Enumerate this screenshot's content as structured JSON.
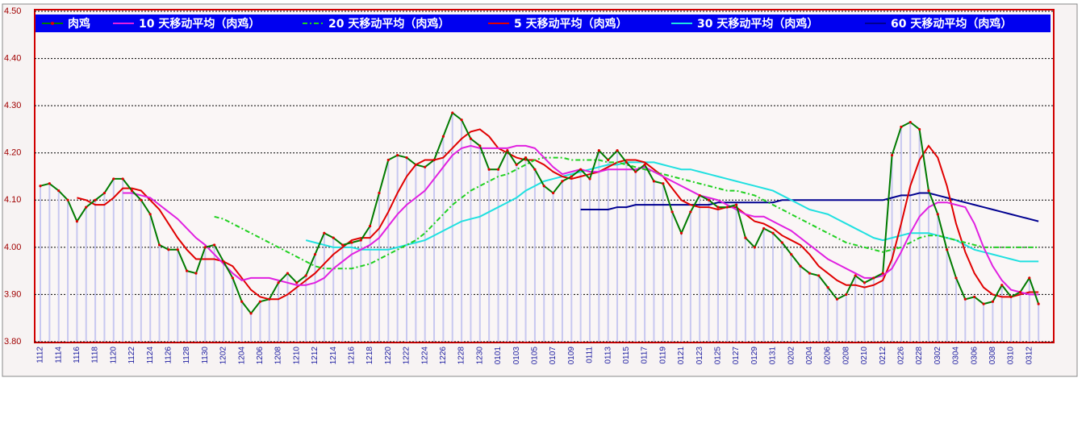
{
  "chart_data": {
    "type": "line",
    "categories": [
      "1112",
      null,
      "1114",
      null,
      "1116",
      null,
      "1118",
      null,
      "1120",
      null,
      "1122",
      null,
      "1124",
      null,
      "1126",
      null,
      "1128",
      null,
      "1130",
      null,
      "1202",
      null,
      "1204",
      null,
      "1206",
      null,
      "1208",
      null,
      "1210",
      null,
      "1212",
      null,
      "1214",
      null,
      "1216",
      null,
      "1218",
      null,
      "1220",
      null,
      "1222",
      null,
      "1224",
      null,
      "1226",
      null,
      "1228",
      null,
      "1230",
      null,
      "0101",
      null,
      "0103",
      null,
      "0105",
      null,
      "0107",
      null,
      "0109",
      null,
      "0111",
      null,
      "0113",
      null,
      "0115",
      null,
      "0117",
      null,
      "0119",
      null,
      "0121",
      null,
      "0123",
      null,
      "0125",
      null,
      "0127",
      null,
      "0129",
      null,
      "0131",
      null,
      "0202",
      null,
      "0204",
      null,
      "0206",
      null,
      "0208",
      null,
      "0210",
      null,
      "0212",
      null,
      "0226",
      null,
      "0228",
      null,
      "0302",
      null,
      "0304",
      null,
      "0306",
      null,
      "0308",
      null,
      "0310",
      null,
      "0312",
      null
    ],
    "series": [
      {
        "name": "肉鸡",
        "color": "#007a00",
        "marker_color": "#e00000",
        "bar_color": "#c8c8f0",
        "values": [
          4.13,
          4.135,
          4.12,
          4.1,
          4.055,
          4.085,
          4.1,
          4.115,
          4.145,
          4.145,
          4.12,
          4.1,
          4.07,
          4.005,
          3.995,
          3.995,
          3.95,
          3.945,
          4.0,
          4.005,
          3.97,
          3.935,
          3.885,
          3.86,
          3.885,
          3.89,
          3.925,
          3.945,
          3.925,
          3.94,
          3.985,
          4.03,
          4.02,
          4.005,
          4.01,
          4.015,
          4.045,
          4.115,
          4.185,
          4.195,
          4.19,
          4.175,
          4.17,
          4.185,
          4.235,
          4.285,
          4.27,
          4.23,
          4.215,
          4.165,
          4.165,
          4.205,
          4.175,
          4.19,
          4.165,
          4.13,
          4.115,
          4.14,
          4.15,
          4.165,
          4.145,
          4.205,
          4.185,
          4.205,
          4.18,
          4.16,
          4.175,
          4.14,
          4.135,
          4.075,
          4.03,
          4.075,
          4.11,
          4.1,
          4.085,
          4.085,
          4.09,
          4.02,
          4.0,
          4.04,
          4.03,
          4.01,
          3.985,
          3.96,
          3.945,
          3.94,
          3.915,
          3.89,
          3.9,
          3.94,
          3.925,
          3.935,
          3.945,
          4.195,
          4.255,
          4.265,
          4.25,
          4.12,
          4.07,
          3.995,
          3.935,
          3.89,
          3.895,
          3.88,
          3.885,
          3.92,
          3.895,
          3.905,
          3.935,
          3.88
        ]
      },
      {
        "name": "10 天移动平均（肉鸡）",
        "color": "#e020e0",
        "values": [
          null,
          null,
          null,
          null,
          null,
          null,
          null,
          null,
          null,
          4.115,
          4.115,
          4.11,
          4.105,
          4.09,
          4.075,
          4.06,
          4.04,
          4.02,
          4.005,
          3.985,
          3.965,
          3.945,
          3.93,
          3.935,
          3.935,
          3.935,
          3.93,
          3.925,
          3.92,
          3.92,
          3.925,
          3.935,
          3.955,
          3.97,
          3.985,
          3.995,
          4.005,
          4.02,
          4.045,
          4.07,
          4.09,
          4.105,
          4.12,
          4.145,
          4.17,
          4.195,
          4.21,
          4.215,
          4.21,
          4.21,
          4.21,
          4.21,
          4.215,
          4.215,
          4.21,
          4.19,
          4.17,
          4.155,
          4.16,
          4.165,
          4.16,
          4.16,
          4.165,
          4.165,
          4.165,
          4.165,
          4.17,
          4.16,
          4.15,
          4.14,
          4.13,
          4.12,
          4.11,
          4.105,
          4.1,
          4.09,
          4.08,
          4.07,
          4.065,
          4.065,
          4.055,
          4.045,
          4.035,
          4.02,
          4.005,
          3.99,
          3.975,
          3.965,
          3.955,
          3.945,
          3.935,
          3.935,
          3.94,
          3.955,
          3.99,
          4.03,
          4.065,
          4.085,
          4.095,
          4.095,
          4.09,
          4.085,
          4.05,
          4.0,
          3.96,
          3.93,
          3.91,
          3.905,
          3.9,
          3.9
        ]
      },
      {
        "name": "20 天移动平均（肉鸡）",
        "color": "#20d020",
        "line_style": "dashdot",
        "values": [
          null,
          null,
          null,
          null,
          null,
          null,
          null,
          null,
          null,
          null,
          null,
          null,
          null,
          null,
          null,
          null,
          null,
          null,
          null,
          4.065,
          4.06,
          4.05,
          4.04,
          4.03,
          4.02,
          4.01,
          4.0,
          3.99,
          3.98,
          3.97,
          3.96,
          3.955,
          3.955,
          3.955,
          3.955,
          3.96,
          3.965,
          3.975,
          3.985,
          3.995,
          4.005,
          4.015,
          4.03,
          4.05,
          4.07,
          4.09,
          4.105,
          4.12,
          4.13,
          4.14,
          4.15,
          4.155,
          4.165,
          4.175,
          4.185,
          4.19,
          4.19,
          4.19,
          4.185,
          4.185,
          4.185,
          4.185,
          4.18,
          4.18,
          4.175,
          4.17,
          4.165,
          4.16,
          4.155,
          4.15,
          4.145,
          4.14,
          4.135,
          4.13,
          4.125,
          4.12,
          4.12,
          4.115,
          4.11,
          4.1,
          4.09,
          4.08,
          4.07,
          4.06,
          4.05,
          4.04,
          4.03,
          4.02,
          4.01,
          4.005,
          4.0,
          3.995,
          3.99,
          3.995,
          4.0,
          4.01,
          4.02,
          4.025,
          4.025,
          4.02,
          4.015,
          4.01,
          4.005,
          4.0,
          4.0,
          4.0,
          4.0,
          4.0,
          4.0,
          4.0
        ]
      },
      {
        "name": "5 天移动平均（肉鸡）",
        "color": "#e00000",
        "values": [
          null,
          null,
          null,
          null,
          4.105,
          4.1,
          4.09,
          4.09,
          4.105,
          4.125,
          4.125,
          4.12,
          4.1,
          4.08,
          4.05,
          4.02,
          3.995,
          3.975,
          3.975,
          3.975,
          3.97,
          3.96,
          3.935,
          3.91,
          3.895,
          3.89,
          3.89,
          3.9,
          3.915,
          3.93,
          3.945,
          3.965,
          3.985,
          4.0,
          4.015,
          4.02,
          4.02,
          4.04,
          4.075,
          4.115,
          4.15,
          4.175,
          4.185,
          4.185,
          4.19,
          4.21,
          4.23,
          4.245,
          4.25,
          4.235,
          4.21,
          4.2,
          4.19,
          4.185,
          4.185,
          4.175,
          4.16,
          4.15,
          4.145,
          4.15,
          4.155,
          4.16,
          4.17,
          4.18,
          4.185,
          4.185,
          4.18,
          4.165,
          4.15,
          4.125,
          4.1,
          4.09,
          4.085,
          4.085,
          4.08,
          4.085,
          4.085,
          4.07,
          4.055,
          4.05,
          4.04,
          4.025,
          4.015,
          4.005,
          3.985,
          3.96,
          3.945,
          3.93,
          3.92,
          3.92,
          3.915,
          3.92,
          3.93,
          3.975,
          4.05,
          4.13,
          4.185,
          4.215,
          4.19,
          4.13,
          4.05,
          3.99,
          3.945,
          3.915,
          3.9,
          3.895,
          3.895,
          3.9,
          3.905,
          3.905
        ]
      },
      {
        "name": "30 天移动平均（肉鸡）",
        "color": "#20e0e0",
        "values": [
          null,
          null,
          null,
          null,
          null,
          null,
          null,
          null,
          null,
          null,
          null,
          null,
          null,
          null,
          null,
          null,
          null,
          null,
          null,
          null,
          null,
          null,
          null,
          null,
          null,
          null,
          null,
          null,
          null,
          4.015,
          4.01,
          4.005,
          4.0,
          4.0,
          4.0,
          3.995,
          3.995,
          3.995,
          3.995,
          4.0,
          4.005,
          4.01,
          4.015,
          4.025,
          4.035,
          4.045,
          4.055,
          4.06,
          4.065,
          4.075,
          4.085,
          4.095,
          4.105,
          4.12,
          4.13,
          4.14,
          4.145,
          4.15,
          4.155,
          4.16,
          4.165,
          4.17,
          4.175,
          4.175,
          4.18,
          4.18,
          4.18,
          4.18,
          4.175,
          4.17,
          4.165,
          4.165,
          4.16,
          4.155,
          4.15,
          4.145,
          4.14,
          4.135,
          4.13,
          4.125,
          4.12,
          4.11,
          4.1,
          4.09,
          4.08,
          4.075,
          4.07,
          4.06,
          4.05,
          4.04,
          4.03,
          4.02,
          4.015,
          4.02,
          4.025,
          4.03,
          4.03,
          4.03,
          4.025,
          4.02,
          4.015,
          4.005,
          3.995,
          3.99,
          3.985,
          3.98,
          3.975,
          3.97,
          3.97,
          3.97
        ]
      },
      {
        "name": "60 天移动平均（肉鸡）",
        "color": "#000090",
        "values": [
          null,
          null,
          null,
          null,
          null,
          null,
          null,
          null,
          null,
          null,
          null,
          null,
          null,
          null,
          null,
          null,
          null,
          null,
          null,
          null,
          null,
          null,
          null,
          null,
          null,
          null,
          null,
          null,
          null,
          null,
          null,
          null,
          null,
          null,
          null,
          null,
          null,
          null,
          null,
          null,
          null,
          null,
          null,
          null,
          null,
          null,
          null,
          null,
          null,
          null,
          null,
          null,
          null,
          null,
          null,
          null,
          null,
          null,
          null,
          4.08,
          4.08,
          4.08,
          4.08,
          4.085,
          4.085,
          4.09,
          4.09,
          4.09,
          4.09,
          4.09,
          4.09,
          4.09,
          4.09,
          4.09,
          4.095,
          4.095,
          4.095,
          4.095,
          4.095,
          4.095,
          4.095,
          4.1,
          4.1,
          4.1,
          4.1,
          4.1,
          4.1,
          4.1,
          4.1,
          4.1,
          4.1,
          4.1,
          4.1,
          4.105,
          4.11,
          4.11,
          4.115,
          4.115,
          4.11,
          4.105,
          4.1,
          4.095,
          4.09,
          4.085,
          4.08,
          4.075,
          4.07,
          4.065,
          4.06,
          4.055
        ]
      }
    ],
    "ylim": [
      3.8,
      4.5
    ],
    "yticks": [
      {
        "value": 3.8,
        "label": "3.80"
      },
      {
        "value": 3.9,
        "label": "3.90"
      },
      {
        "value": 4.0,
        "label": "4.00"
      },
      {
        "value": 4.1,
        "label": "4.10"
      },
      {
        "value": 4.2,
        "label": "4.20"
      },
      {
        "value": 4.3,
        "label": "4.30"
      },
      {
        "value": 4.4,
        "label": "4.40"
      },
      {
        "value": 4.5,
        "label": "4.50"
      }
    ],
    "grid": true
  }
}
